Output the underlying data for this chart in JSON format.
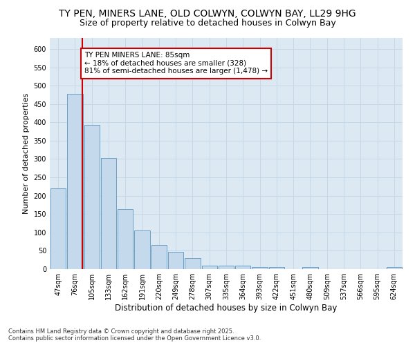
{
  "title": "TY PEN, MINERS LANE, OLD COLWYN, COLWYN BAY, LL29 9HG",
  "subtitle": "Size of property relative to detached houses in Colwyn Bay",
  "xlabel": "Distribution of detached houses by size in Colwyn Bay",
  "ylabel": "Number of detached properties",
  "categories": [
    "47sqm",
    "76sqm",
    "105sqm",
    "133sqm",
    "162sqm",
    "191sqm",
    "220sqm",
    "249sqm",
    "278sqm",
    "307sqm",
    "335sqm",
    "364sqm",
    "393sqm",
    "422sqm",
    "451sqm",
    "480sqm",
    "509sqm",
    "537sqm",
    "566sqm",
    "595sqm",
    "624sqm"
  ],
  "values": [
    220,
    478,
    393,
    302,
    163,
    105,
    65,
    47,
    30,
    10,
    10,
    10,
    5,
    5,
    0,
    5,
    0,
    0,
    0,
    0,
    5
  ],
  "bar_color": "#c5d9ec",
  "bar_edge_color": "#6a9ec5",
  "red_line_index": 1.45,
  "annotation_text": "TY PEN MINERS LANE: 85sqm\n← 18% of detached houses are smaller (328)\n81% of semi-detached houses are larger (1,478) →",
  "annotation_box_color": "#ffffff",
  "annotation_box_edge": "#cc0000",
  "red_line_color": "#cc0000",
  "grid_color": "#c5d8e8",
  "plot_bg_color": "#dce8f2",
  "fig_bg_color": "#ffffff",
  "footer_text": "Contains HM Land Registry data © Crown copyright and database right 2025.\nContains public sector information licensed under the Open Government Licence v3.0.",
  "ylim": [
    0,
    630
  ],
  "yticks": [
    0,
    50,
    100,
    150,
    200,
    250,
    300,
    350,
    400,
    450,
    500,
    550,
    600
  ],
  "title_fontsize": 10,
  "subtitle_fontsize": 9,
  "ylabel_fontsize": 8,
  "xlabel_fontsize": 8.5,
  "tick_fontsize": 7,
  "annotation_fontsize": 7.5,
  "footer_fontsize": 6
}
